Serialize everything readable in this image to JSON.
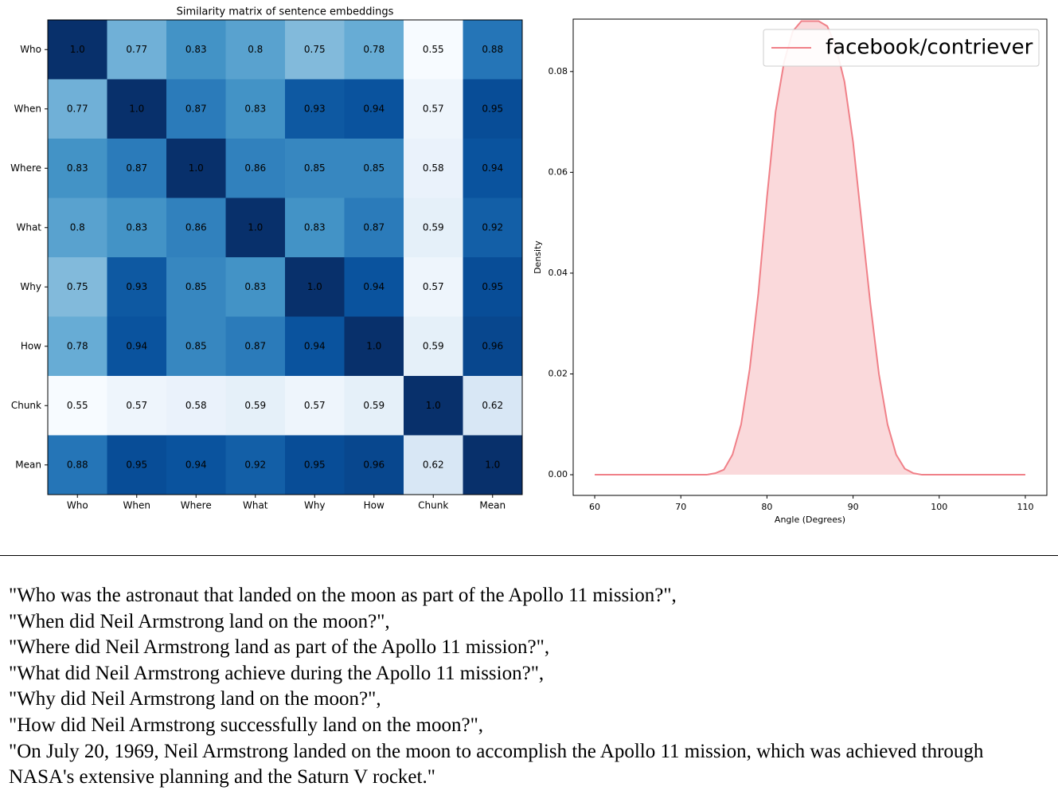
{
  "chart_data": [
    {
      "type": "heatmap",
      "title": "Similarity matrix of sentence embeddings",
      "colormap": "Blues",
      "x_categories": [
        "Who",
        "When",
        "Where",
        "What",
        "Why",
        "How",
        "Chunk",
        "Mean"
      ],
      "y_categories": [
        "Who",
        "When",
        "Where",
        "What",
        "Why",
        "How",
        "Chunk",
        "Mean"
      ],
      "values": [
        [
          1.0,
          0.77,
          0.83,
          0.8,
          0.75,
          0.78,
          0.55,
          0.88
        ],
        [
          0.77,
          1.0,
          0.87,
          0.83,
          0.93,
          0.94,
          0.57,
          0.95
        ],
        [
          0.83,
          0.87,
          1.0,
          0.86,
          0.85,
          0.85,
          0.58,
          0.94
        ],
        [
          0.8,
          0.83,
          0.86,
          1.0,
          0.83,
          0.87,
          0.59,
          0.92
        ],
        [
          0.75,
          0.93,
          0.85,
          0.83,
          1.0,
          0.94,
          0.57,
          0.95
        ],
        [
          0.78,
          0.94,
          0.85,
          0.87,
          0.94,
          1.0,
          0.59,
          0.96
        ],
        [
          0.55,
          0.57,
          0.58,
          0.59,
          0.57,
          0.59,
          1.0,
          0.62
        ],
        [
          0.88,
          0.95,
          0.94,
          0.92,
          0.95,
          0.96,
          0.62,
          1.0
        ]
      ],
      "value_labels": [
        [
          "1.0",
          "0.77",
          "0.83",
          "0.8",
          "0.75",
          "0.78",
          "0.55",
          "0.88"
        ],
        [
          "0.77",
          "1.0",
          "0.87",
          "0.83",
          "0.93",
          "0.94",
          "0.57",
          "0.95"
        ],
        [
          "0.83",
          "0.87",
          "1.0",
          "0.86",
          "0.85",
          "0.85",
          "0.58",
          "0.94"
        ],
        [
          "0.8",
          "0.83",
          "0.86",
          "1.0",
          "0.83",
          "0.87",
          "0.59",
          "0.92"
        ],
        [
          "0.75",
          "0.93",
          "0.85",
          "0.83",
          "1.0",
          "0.94",
          "0.57",
          "0.95"
        ],
        [
          "0.78",
          "0.94",
          "0.85",
          "0.87",
          "0.94",
          "1.0",
          "0.59",
          "0.96"
        ],
        [
          "0.55",
          "0.57",
          "0.58",
          "0.59",
          "0.57",
          "0.59",
          "1.0",
          "0.62"
        ],
        [
          "0.88",
          "0.95",
          "0.94",
          "0.92",
          "0.95",
          "0.96",
          "0.62",
          "1.0"
        ]
      ]
    },
    {
      "type": "area",
      "x_label": "Angle (Degrees)",
      "y_label": "Density",
      "legend": "upper right",
      "xlim": [
        57.5,
        112.5
      ],
      "ylim": [
        -0.0041,
        0.0904
      ],
      "xticks": [
        60,
        70,
        80,
        90,
        100,
        110
      ],
      "yticks": [
        {
          "value": 0,
          "label": "0.00"
        },
        {
          "value": 0.02,
          "label": "0.02"
        },
        {
          "value": 0.04,
          "label": "0.04"
        },
        {
          "value": 0.06,
          "label": "0.06"
        },
        {
          "value": 0.08,
          "label": "0.08"
        }
      ],
      "x": [
        60,
        70,
        73,
        74,
        75,
        76,
        77,
        78,
        79,
        80,
        81,
        82,
        83,
        84,
        85,
        86,
        87,
        88,
        89,
        90,
        91,
        92,
        93,
        94,
        95,
        96,
        97,
        98,
        100,
        110
      ],
      "series": [
        {
          "name": "facebook/contriever",
          "color": "#f08088",
          "values": [
            0,
            0,
            0,
            0.0003,
            0.001,
            0.004,
            0.01,
            0.021,
            0.036,
            0.055,
            0.072,
            0.082,
            0.088,
            0.09,
            0.09,
            0.09,
            0.089,
            0.085,
            0.078,
            0.066,
            0.05,
            0.034,
            0.02,
            0.01,
            0.004,
            0.0012,
            0.0003,
            0,
            0,
            0
          ]
        }
      ]
    }
  ],
  "sentences": [
    "\"Who was the astronaut that landed on the moon as part of the Apollo 11 mission?\",",
    "\"When did Neil Armstrong land on the moon?\",",
    "\"Where did Neil Armstrong land as part of the Apollo 11 mission?\",",
    "\"What did Neil Armstrong achieve during the Apollo 11 mission?\",",
    "\"Why did Neil Armstrong land on the moon?\",",
    "\"How did Neil Armstrong successfully land on the moon?\",",
    "\"On July 20, 1969, Neil Armstrong landed on the moon to accomplish the Apollo 11 mission, which was achieved through NASA's extensive planning and the Saturn V rocket.\""
  ]
}
